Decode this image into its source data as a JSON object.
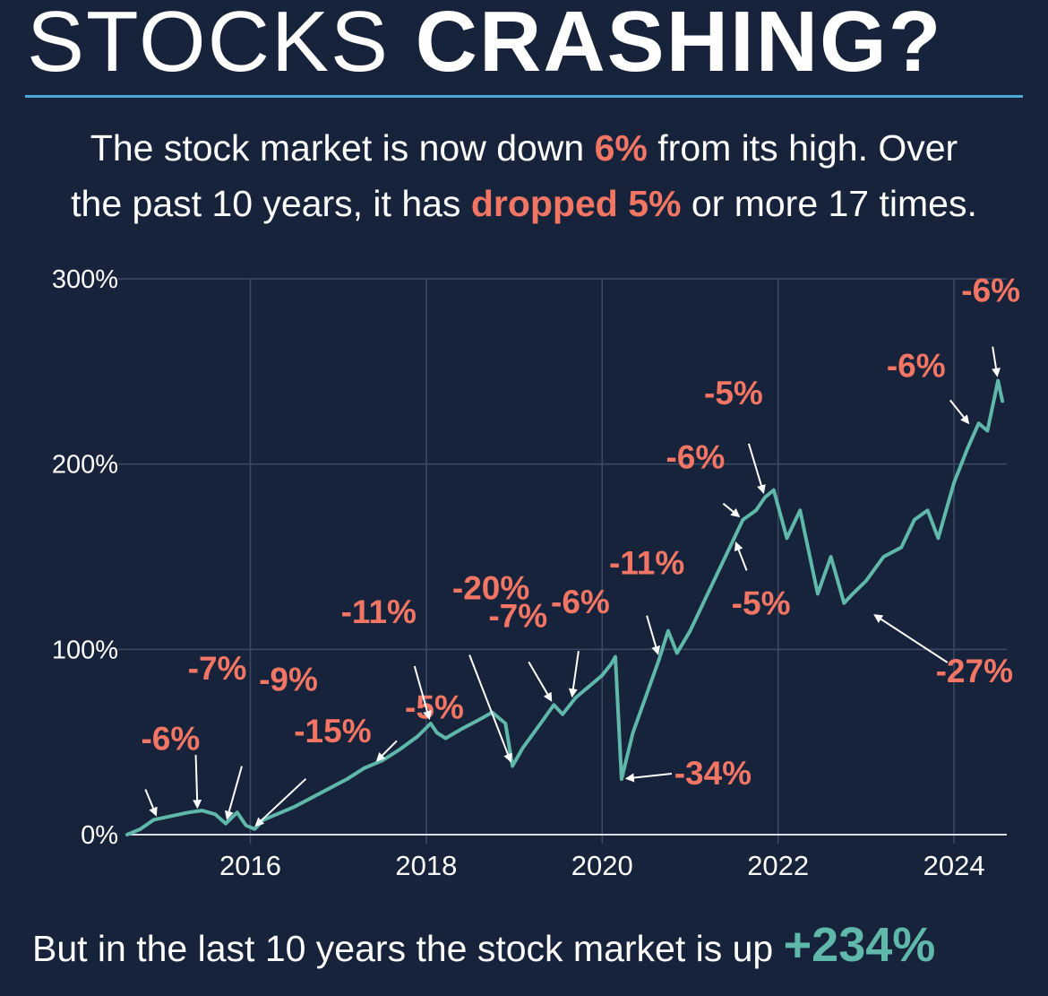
{
  "headline": {
    "light": "STOCKS",
    "bold": "CRASHING?"
  },
  "intro": {
    "t1": "The stock market is now down ",
    "h1": "6%",
    "t2": " from its high. Over",
    "t3": "the past 10 years, it has ",
    "h2": "dropped 5%",
    "t4": " or more 17 times."
  },
  "footer": {
    "text": "But in the last 10 years the stock market is up ",
    "highlight": "+234%"
  },
  "colors": {
    "background": "#17233a",
    "line": "#5fb8aa",
    "accent": "#f37564",
    "rule": "#4fa9d6",
    "grid": "#3c4b66"
  },
  "chart_data": {
    "type": "line",
    "x_unit": "year",
    "y_unit": "%",
    "ylim": [
      0,
      300
    ],
    "xlim": [
      2014.6,
      2024.6
    ],
    "yticks": [
      0,
      100,
      200,
      300
    ],
    "ytick_labels": [
      "0%",
      "100%",
      "200%",
      "300%"
    ],
    "xticks": [
      2016,
      2018,
      2020,
      2022,
      2024
    ],
    "xtick_labels": [
      "2016",
      "2018",
      "2020",
      "2022",
      "2024"
    ],
    "grid": true,
    "series": [
      {
        "x": [
          2014.6,
          2014.75,
          2014.9,
          2015.1,
          2015.3,
          2015.45,
          2015.6,
          2015.72,
          2015.85,
          2015.95,
          2016.05,
          2016.15,
          2016.3,
          2016.5,
          2016.7,
          2016.9,
          2017.1,
          2017.3,
          2017.5,
          2017.7,
          2017.9,
          2018.05,
          2018.12,
          2018.22,
          2018.4,
          2018.6,
          2018.75,
          2018.9,
          2018.98,
          2019.1,
          2019.3,
          2019.45,
          2019.55,
          2019.7,
          2019.85,
          2020.0,
          2020.1,
          2020.15,
          2020.22,
          2020.35,
          2020.5,
          2020.65,
          2020.75,
          2020.85,
          2021.0,
          2021.2,
          2021.4,
          2021.6,
          2021.75,
          2021.85,
          2021.95,
          2022.1,
          2022.25,
          2022.45,
          2022.6,
          2022.75,
          2022.85,
          2023.0,
          2023.2,
          2023.4,
          2023.55,
          2023.7,
          2023.82,
          2024.0,
          2024.15,
          2024.28,
          2024.38,
          2024.5,
          2024.55
        ],
        "y": [
          0,
          3,
          8,
          10,
          12,
          13,
          11,
          6,
          12,
          5,
          3,
          8,
          11,
          15,
          20,
          25,
          30,
          36,
          40,
          46,
          53,
          60,
          55,
          52,
          57,
          62,
          66,
          60,
          37,
          47,
          60,
          70,
          65,
          74,
          80,
          86,
          92,
          96,
          30,
          55,
          75,
          95,
          110,
          98,
          110,
          130,
          150,
          170,
          175,
          182,
          186,
          160,
          175,
          130,
          150,
          125,
          130,
          137,
          150,
          155,
          170,
          175,
          160,
          190,
          208,
          222,
          218,
          245,
          234
        ]
      }
    ],
    "annotations": [
      {
        "label": "-6%",
        "x": 2014.95,
        "y": 8
      },
      {
        "label": "-7%",
        "x": 2015.4,
        "y": 12
      },
      {
        "label": "-9%",
        "x": 2015.72,
        "y": 6
      },
      {
        "label": "-15%",
        "x": 2016.02,
        "y": 3
      },
      {
        "label": "-5%",
        "x": 2017.4,
        "y": 38
      },
      {
        "label": "-11%",
        "x": 2018.05,
        "y": 60
      },
      {
        "label": "-20%",
        "x": 2018.98,
        "y": 37
      },
      {
        "label": "-7%",
        "x": 2019.45,
        "y": 70
      },
      {
        "label": "-6%",
        "x": 2019.65,
        "y": 72
      },
      {
        "label": "-34%",
        "x": 2020.22,
        "y": 30
      },
      {
        "label": "-11%",
        "x": 2020.65,
        "y": 95
      },
      {
        "label": "-5%",
        "x": 2021.5,
        "y": 160
      },
      {
        "label": "-6%",
        "x": 2021.6,
        "y": 170
      },
      {
        "label": "-5%",
        "x": 2021.85,
        "y": 182
      },
      {
        "label": "-27%",
        "x": 2023.05,
        "y": 120
      },
      {
        "label": "-6%",
        "x": 2024.2,
        "y": 220
      },
      {
        "label": "-6%",
        "x": 2024.5,
        "y": 245
      }
    ]
  }
}
